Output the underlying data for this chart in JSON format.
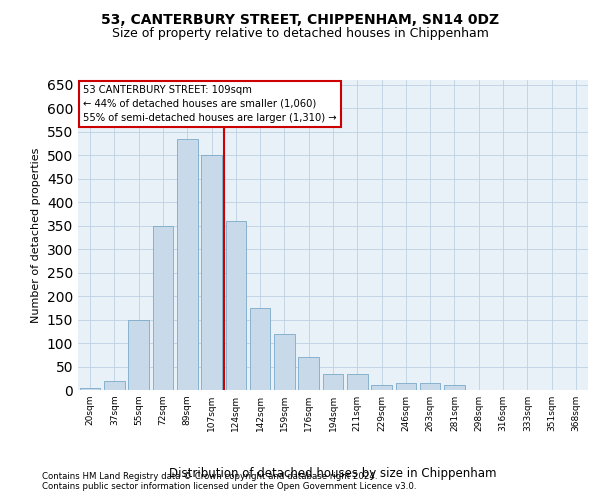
{
  "title1": "53, CANTERBURY STREET, CHIPPENHAM, SN14 0DZ",
  "title2": "Size of property relative to detached houses in Chippenham",
  "xlabel": "Distribution of detached houses by size in Chippenham",
  "ylabel": "Number of detached properties",
  "footnote1": "Contains HM Land Registry data © Crown copyright and database right 2024.",
  "footnote2": "Contains public sector information licensed under the Open Government Licence v3.0.",
  "bar_color": "#c8d9ea",
  "bar_edge_color": "#7aaac8",
  "grid_color": "#bdd0e2",
  "bg_color": "#e8f0f8",
  "vline_color": "#cc0000",
  "annotation_text": "53 CANTERBURY STREET: 109sqm\n← 44% of detached houses are smaller (1,060)\n55% of semi-detached houses are larger (1,310) →",
  "annotation_box_edgecolor": "#cc0000",
  "categories": [
    "20sqm",
    "37sqm",
    "55sqm",
    "72sqm",
    "89sqm",
    "107sqm",
    "124sqm",
    "142sqm",
    "159sqm",
    "176sqm",
    "194sqm",
    "211sqm",
    "229sqm",
    "246sqm",
    "263sqm",
    "281sqm",
    "298sqm",
    "316sqm",
    "333sqm",
    "351sqm",
    "368sqm"
  ],
  "values": [
    5,
    20,
    150,
    350,
    535,
    500,
    360,
    175,
    120,
    70,
    35,
    35,
    10,
    15,
    15,
    10,
    0,
    0,
    0,
    0,
    0
  ],
  "ylim_max": 660,
  "yticks": [
    0,
    50,
    100,
    150,
    200,
    250,
    300,
    350,
    400,
    450,
    500,
    550,
    600,
    650
  ],
  "vline_index": 5.5
}
